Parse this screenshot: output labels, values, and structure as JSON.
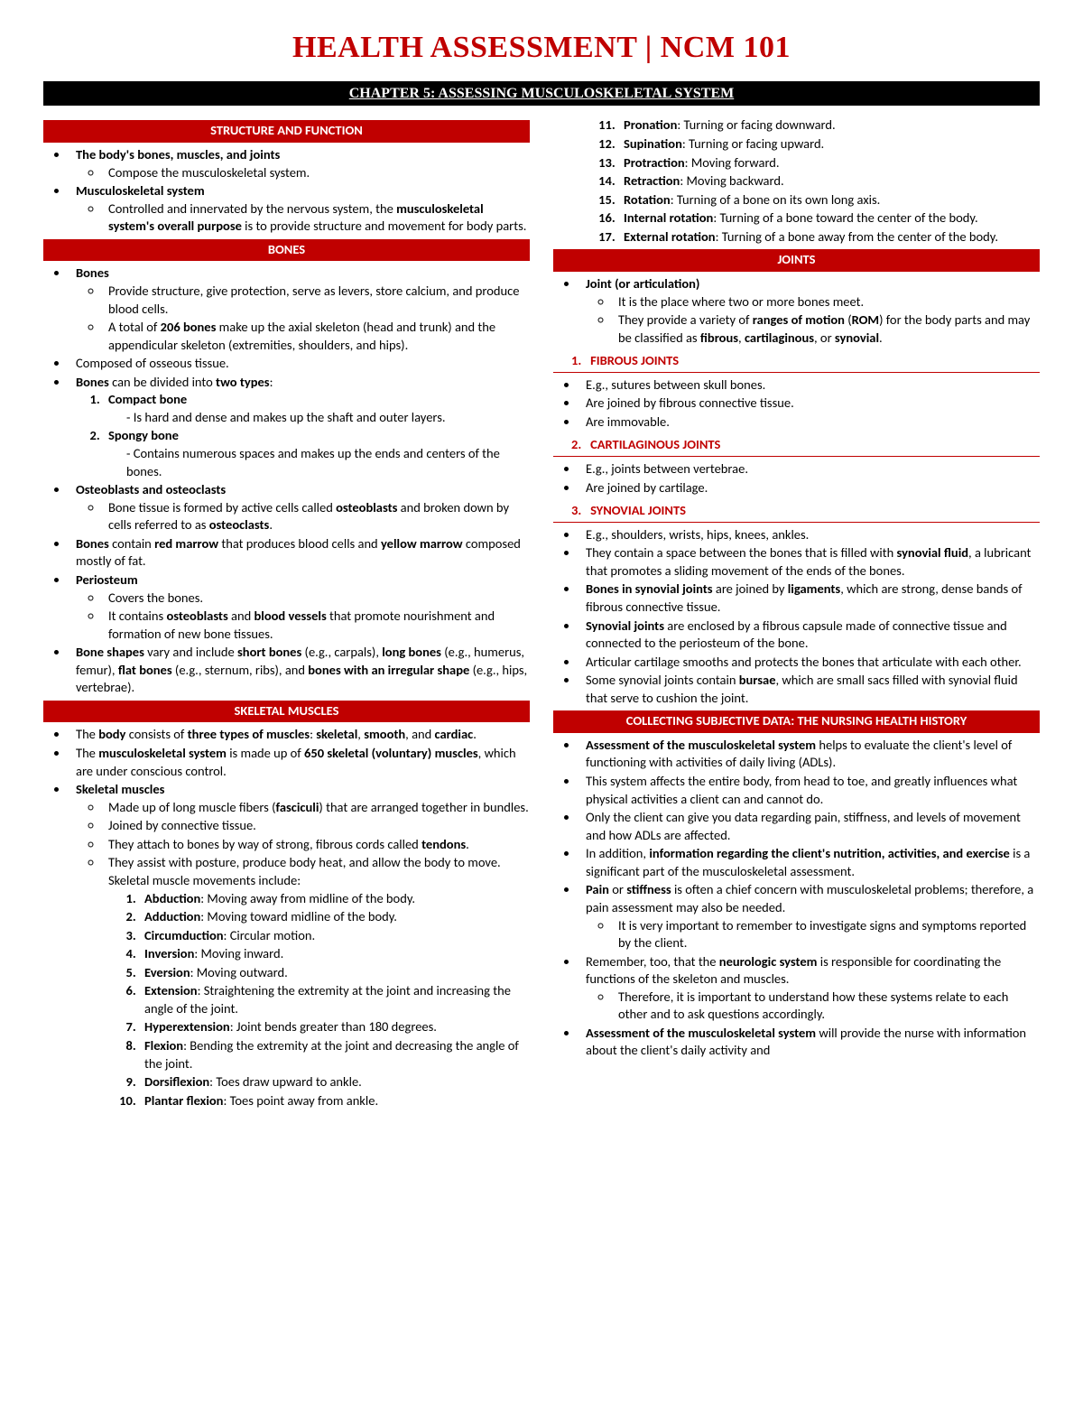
{
  "title": "HEALTH ASSESSMENT | NCM 101",
  "chapter": "CHAPTER 5: ASSESSING MUSCULOSKELETAL SYSTEM",
  "colors": {
    "accent": "#c00000",
    "black": "#000000",
    "white": "#ffffff"
  },
  "h": {
    "structure": "STRUCTURE AND FUNCTION",
    "bones": "BONES",
    "muscles": "SKELETAL MUSCLES",
    "joints": "JOINTS",
    "j1": "FIBROUS JOINTS",
    "j2": "CARTILAGINOUS JOINTS",
    "j3": "SYNOVIAL JOINTS",
    "subjective": "COLLECTING SUBJECTIVE DATA: THE NURSING HEALTH HISTORY"
  },
  "sf": {
    "a": "The body's bones, muscles, and joints",
    "a1": "Compose the musculoskeletal system.",
    "b": "Musculoskeletal system",
    "b1_pre": "Controlled and innervated by the nervous system, the ",
    "b1_bold": "musculoskeletal system's overall purpose",
    "b1_post": " is to provide structure and movement for body parts."
  },
  "bones": {
    "a": "Bones",
    "a1": "Provide structure, give protection, serve as levers, store calcium, and produce blood cells.",
    "a2_pre": "A total of ",
    "a2_bold": "206 bones",
    "a2_post": " make up the axial skeleton (head and trunk) and the appendicular skeleton (extremities, shoulders, and hips).",
    "b": "Composed of osseous tissue.",
    "c_pre": "Bones",
    "c_mid": " can be divided into ",
    "c_bold2": "two types",
    "c_post": ":",
    "t1": "Compact bone",
    "t1d": "Is hard and dense and makes up the shaft and outer layers.",
    "t2": "Spongy bone",
    "t2d": "Contains numerous spaces and makes up the ends and centers of the bones.",
    "d": "Osteoblasts and osteoclasts",
    "d1_pre": "Bone tissue is formed by active cells called ",
    "d1_b1": "osteoblasts",
    "d1_mid": " and broken down by cells referred to as ",
    "d1_b2": "osteoclasts",
    "d1_post": ".",
    "e_b1": "Bones",
    "e_mid1": " contain ",
    "e_b2": "red marrow",
    "e_mid2": " that produces blood cells and ",
    "e_b3": "yellow marrow",
    "e_post": " composed mostly of fat.",
    "f": "Periosteum",
    "f1": "Covers the bones.",
    "f2_pre": "It contains ",
    "f2_b1": "osteoblasts",
    "f2_mid": " and ",
    "f2_b2": "blood vessels",
    "f2_post": " that promote nourishment and formation of new bone tissues.",
    "g_b1": "Bone shapes",
    "g_mid1": " vary and include ",
    "g_b2": "short bones",
    "g_mid2": " (e.g., carpals), ",
    "g_b3": "long bones",
    "g_mid3": " (e.g., humerus, femur), ",
    "g_b4": "flat bones",
    "g_mid4": " (e.g., sternum, ribs), and ",
    "g_b5": "bones with an irregular shape",
    "g_post": " (e.g., hips, vertebrae)."
  },
  "muscles": {
    "a_pre": "The ",
    "a_b1": "body",
    "a_mid1": " consists of ",
    "a_b2": "three types of muscles",
    "a_mid2": ": ",
    "a_b3": "skeletal",
    "a_mid3": ", ",
    "a_b4": "smooth",
    "a_mid4": ", and ",
    "a_b5": "cardiac",
    "a_post": ".",
    "b_pre": "The ",
    "b_b1": "musculoskeletal system",
    "b_mid1": " is made up of ",
    "b_b2": "650 skeletal (voluntary) muscles",
    "b_post": ", which are under conscious control.",
    "c": "Skeletal muscles",
    "c1_pre": "Made up of long muscle fibers (",
    "c1_b": "fasciculi",
    "c1_post": ") that are arranged together in bundles.",
    "c2": "Joined by connective tissue.",
    "c3_pre": "They attach to bones by way of strong, fibrous cords called ",
    "c3_b": "tendons",
    "c3_post": ".",
    "c4": "They assist with posture, produce body heat, and allow the body to move. Skeletal muscle movements include:",
    "mv": [
      {
        "t": "Abduction",
        "d": ": Moving away from midline of the body."
      },
      {
        "t": "Adduction",
        "d": ": Moving toward midline of the body."
      },
      {
        "t": "Circumduction",
        "d": ": Circular motion."
      },
      {
        "t": "Inversion",
        "d": ": Moving inward."
      },
      {
        "t": "Eversion",
        "d": ": Moving outward."
      },
      {
        "t": "Extension",
        "d": ": Straightening the extremity at the joint and increasing the angle of the joint."
      },
      {
        "t": "Hyperextension",
        "d": ": Joint bends greater than 180 degrees."
      },
      {
        "t": "Flexion",
        "d": ": Bending the extremity at the joint and decreasing the angle of the joint."
      },
      {
        "t": "Dorsiflexion",
        "d": ": Toes draw upward to ankle."
      },
      {
        "t": "Plantar flexion",
        "d": ": Toes point away from ankle."
      },
      {
        "t": "Pronation",
        "d": ": Turning or facing downward."
      },
      {
        "t": "Supination",
        "d": ": Turning or facing upward."
      },
      {
        "t": "Protraction",
        "d": ": Moving forward."
      },
      {
        "t": "Retraction",
        "d": ": Moving backward."
      },
      {
        "t": "Rotation",
        "d": ": Turning of a bone on its own long axis."
      },
      {
        "t": "Internal rotation",
        "d": ": Turning of a bone toward the center of the body."
      },
      {
        "t": "External rotation",
        "d": ": Turning of a bone away from the center of the body."
      }
    ]
  },
  "joints": {
    "a": "Joint (or articulation)",
    "a1": "It is the place where two or more bones meet.",
    "a2_pre": "They provide a variety of ",
    "a2_b1": "ranges of motion",
    "a2_mid1": " (",
    "a2_b2": "ROM",
    "a2_mid2": ") for the body parts and may be classified as ",
    "a2_b3": "fibrous",
    "a2_mid3": ", ",
    "a2_b4": "cartilaginous",
    "a2_mid4": ", or ",
    "a2_b5": "synovial",
    "a2_post": ".",
    "f1": "E.g., sutures between skull bones.",
    "f2": "Are joined by fibrous connective tissue.",
    "f3": "Are immovable.",
    "c1": "E.g., joints between vertebrae.",
    "c2": "Are joined by cartilage.",
    "s1": "E.g., shoulders, wrists, hips, knees, ankles.",
    "s2_pre": "They contain a space between the bones that is filled with ",
    "s2_b": "synovial fluid",
    "s2_post": ", a lubricant that promotes a sliding movement of the ends of the bones.",
    "s3_b1": "Bones in synovial joints",
    "s3_mid": " are joined by ",
    "s3_b2": "ligaments",
    "s3_post": ", which are strong, dense bands of fibrous connective tissue.",
    "s4_b": "Synovial joints",
    "s4_post": " are enclosed by a fibrous capsule made of connective tissue and connected to the periosteum of the bone.",
    "s5": "Articular cartilage smooths and protects the bones that articulate with each other.",
    "s6_pre": "Some synovial joints contain ",
    "s6_b": "bursae",
    "s6_post": ", which are small sacs filled with synovial fluid that serve to cushion the joint."
  },
  "subj": {
    "a_b": "Assessment of the musculoskeletal system",
    "a_post": " helps to evaluate the client's level of functioning with activities of daily living (ADLs).",
    "b": "This system affects the entire body, from head to toe, and greatly influences what physical activities a client can and cannot do.",
    "c": "Only the client can give you data regarding pain, stiffness, and levels of movement and how ADLs are affected.",
    "d_pre": "In addition, ",
    "d_b": "information regarding the client's nutrition, activities, and exercise",
    "d_post": " is a significant part of the musculoskeletal assessment.",
    "e_b1": "Pain",
    "e_mid": " or ",
    "e_b2": "stiffness",
    "e_post": " is often a chief concern with musculoskeletal problems; therefore, a pain assessment may also be needed.",
    "e1": "It is very important to remember to investigate signs and symptoms reported by the client.",
    "f_pre": "Remember, too, that the ",
    "f_b": "neurologic system",
    "f_post": " is responsible for coordinating the functions of the skeleton and muscles.",
    "f1": "Therefore, it is important to understand how these systems relate to each other and to ask questions accordingly.",
    "g_b": "Assessment of the musculoskeletal system",
    "g_post": " will provide the nurse with information about the client's daily activity and"
  },
  "num": {
    "one": "1.",
    "two": "2.",
    "three": "3."
  }
}
